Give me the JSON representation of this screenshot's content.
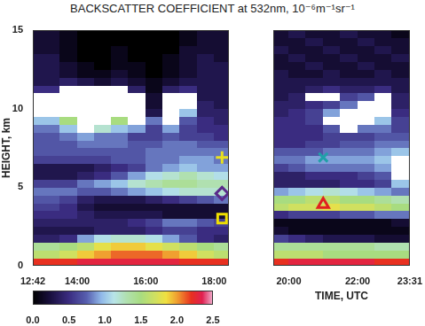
{
  "title": "BACKSCATTER COEFFICIENT at 532nm, 10⁻⁶m⁻¹sr⁻¹",
  "colorbar": {
    "range": [
      0,
      2.5
    ],
    "ticks": [
      {
        "value": 0,
        "label": "0.0"
      },
      0.5,
      {
        "value": 1,
        "label": "1.0"
      },
      1.5,
      {
        "value": 2,
        "label": "2.0"
      },
      2.5
    ]
  },
  "chart_data": [
    {
      "type": "heatmap",
      "y_label": "HEIGHT, km",
      "xlim": [
        12.7,
        18.43
      ],
      "xticks": [
        {
          "value": 12.7,
          "label": "12:42"
        },
        {
          "value": 14,
          "label": "14:00"
        },
        {
          "value": 16,
          "label": "16:00"
        },
        {
          "value": 18,
          "label": "18:00"
        }
      ],
      "ylim": [
        0,
        15
      ],
      "yticks": [
        0,
        5,
        10,
        15
      ],
      "x_edges": [
        12.7,
        13.5,
        14.0,
        14.5,
        15.0,
        15.5,
        16.0,
        16.5,
        17.0,
        17.5,
        18.0,
        18.43
      ],
      "y_edges": [
        0,
        0.5,
        1,
        1.5,
        2,
        2.5,
        3,
        3.5,
        4,
        4.5,
        5,
        5.5,
        6,
        6.5,
        7,
        7.5,
        8,
        8.5,
        9,
        9.5,
        10,
        10.5,
        11,
        11.5,
        12,
        12.5,
        13,
        13.5,
        14,
        14.5,
        15
      ],
      "cells": [
        [
          2.2,
          2.2,
          2.3,
          2.3,
          2.3,
          2.3,
          2.3,
          2.3,
          2.2,
          2.2,
          2.2
        ],
        [
          1.6,
          1.7,
          1.9,
          2.0,
          2.1,
          2.1,
          2.1,
          2.0,
          1.9,
          1.7,
          1.6
        ],
        [
          1.4,
          1.5,
          1.6,
          1.8,
          1.9,
          1.9,
          1.8,
          1.7,
          1.6,
          1.5,
          1.4
        ],
        [
          0.4,
          0.5,
          0.9,
          1.1,
          1.2,
          1.2,
          1.1,
          0.9,
          0.7,
          0.5,
          0.4
        ],
        [
          0.3,
          0.3,
          0.3,
          0.4,
          0.4,
          0.4,
          0.5,
          0.6,
          0.6,
          0.5,
          0.5
        ],
        [
          0.4,
          0.4,
          0.4,
          0.4,
          0.4,
          0.5,
          0.6,
          0.8,
          0.8,
          0.7,
          0.6
        ],
        [
          0.5,
          0.5,
          0.4,
          0.3,
          0.3,
          0.3,
          0.3,
          0.2,
          0.2,
          0.2,
          0.2
        ],
        [
          0.6,
          0.5,
          0.3,
          0.2,
          0.2,
          0.2,
          0.2,
          0.2,
          0.2,
          0.2,
          0.2
        ],
        [
          0.7,
          0.6,
          0.4,
          0.3,
          0.3,
          0.3,
          0.4,
          0.5,
          0.6,
          0.7,
          0.8
        ],
        [
          0.8,
          0.8,
          0.7,
          0.7,
          0.8,
          0.9,
          1.0,
          1.1,
          1.2,
          1.2,
          1.2
        ],
        [
          0.6,
          0.6,
          0.8,
          0.9,
          1.0,
          1.2,
          1.3,
          1.4,
          1.4,
          1.3,
          1.3
        ],
        [
          0.3,
          0.3,
          0.4,
          0.5,
          0.7,
          0.9,
          1.1,
          1.2,
          1.3,
          1.2,
          1.1
        ],
        [
          0.3,
          0.3,
          0.3,
          0.4,
          0.5,
          0.6,
          0.8,
          0.9,
          1.0,
          0.9,
          0.9
        ],
        [
          0.6,
          0.6,
          0.6,
          0.6,
          0.7,
          0.7,
          0.8,
          0.8,
          0.9,
          0.9,
          0.8
        ],
        [
          0.7,
          0.7,
          0.7,
          0.7,
          0.7,
          0.7,
          0.8,
          0.8,
          0.8,
          0.8,
          0.8
        ],
        [
          0.7,
          0.7,
          0.8,
          0.8,
          0.8,
          0.7,
          0.7,
          0.8,
          0.8,
          0.7,
          0.7
        ],
        [
          0.7,
          0.8,
          0.9,
          0.8,
          0.8,
          0.6,
          0.6,
          0.7,
          0.6,
          0.6,
          0.5
        ],
        [
          0.8,
          1.0,
          3.0,
          1.2,
          1.0,
          0.9,
          0.6,
          0.9,
          0.6,
          0.5,
          0.5
        ],
        [
          1.0,
          1.5,
          3.0,
          3.0,
          1.5,
          3.0,
          0.8,
          3.0,
          0.7,
          0.5,
          0.4
        ],
        [
          3.0,
          3.0,
          3.0,
          3.0,
          3.0,
          3.0,
          0.3,
          3.0,
          1.0,
          0.4,
          0.4
        ],
        [
          3.0,
          3.0,
          3.0,
          3.0,
          3.0,
          3.0,
          0.2,
          3.0,
          3.0,
          0.4,
          0.3
        ],
        [
          3.0,
          3.0,
          3.0,
          3.0,
          3.0,
          3.0,
          0.2,
          3.0,
          3.0,
          0.3,
          0.3
        ],
        [
          0.5,
          3.0,
          3.0,
          3.0,
          3.0,
          0.4,
          0.1,
          0.4,
          0.5,
          0.3,
          0.3
        ],
        [
          0.3,
          0.4,
          0.3,
          0.2,
          0.3,
          0.2,
          0.1,
          0.2,
          0.3,
          0.3,
          0.3
        ],
        [
          0.3,
          0.2,
          0.1,
          0.1,
          0.2,
          0.1,
          0.0,
          0.1,
          0.2,
          0.3,
          0.3
        ],
        [
          0.3,
          0.2,
          0.1,
          0.0,
          0.1,
          0.1,
          0.0,
          0.1,
          0.2,
          0.3,
          0.3
        ],
        [
          0.3,
          0.1,
          0.0,
          0.0,
          0.1,
          0.0,
          0.0,
          0.1,
          0.2,
          0.3,
          0.2
        ],
        [
          0.2,
          0.1,
          0.0,
          0.0,
          0.1,
          0.0,
          0.0,
          0.0,
          0.2,
          0.2,
          0.2
        ],
        [
          0.2,
          0.1,
          0.0,
          0.0,
          0.0,
          0.0,
          0.0,
          0.0,
          0.1,
          0.2,
          0.2
        ],
        [
          0.2,
          0.1,
          0.0,
          0.0,
          0.0,
          0.0,
          0.0,
          0.0,
          0.1,
          0.2,
          0.2
        ]
      ],
      "points": [
        {
          "x": 18.23,
          "y": 6.9,
          "color": "#e8e020",
          "marker": "plus"
        },
        {
          "x": 18.23,
          "y": 4.6,
          "color": "#5a2a8a",
          "marker": "diamond"
        },
        {
          "x": 18.23,
          "y": 3.0,
          "color": "#f0e000",
          "marker": "square"
        }
      ]
    },
    {
      "type": "heatmap",
      "x_label": "TIME, UTC",
      "tick_labels": "x",
      "xlim": [
        19.55,
        23.517
      ],
      "xticks": [
        {
          "value": 20,
          "label": "20:00"
        },
        {
          "value": 22,
          "label": "22:00"
        },
        {
          "value": 23.517,
          "label": "23:31"
        }
      ],
      "ylim": [
        0,
        15
      ],
      "x_edges": [
        19.55,
        20.0,
        20.5,
        21.0,
        21.5,
        22.0,
        22.5,
        23.0,
        23.517
      ],
      "y_edges": [
        0,
        0.5,
        1,
        1.5,
        2,
        2.5,
        3,
        3.5,
        4,
        4.5,
        5,
        5.5,
        6,
        6.5,
        7,
        7.5,
        8,
        8.5,
        9,
        9.5,
        10,
        10.5,
        11,
        11.5,
        12,
        12.5,
        13,
        13.5,
        14,
        14.5,
        15
      ],
      "cells": [
        [
          2.2,
          2.3,
          2.3,
          2.3,
          2.3,
          2.3,
          2.2,
          2.2
        ],
        [
          1.6,
          1.6,
          1.6,
          1.5,
          1.5,
          1.5,
          1.5,
          1.5
        ],
        [
          1.4,
          1.4,
          1.4,
          1.4,
          1.4,
          1.4,
          1.3,
          1.3
        ],
        [
          0.6,
          0.5,
          0.4,
          0.3,
          0.3,
          0.3,
          0.2,
          0.2
        ],
        [
          0.2,
          0.1,
          0.1,
          0.1,
          0.1,
          0.1,
          0.1,
          0.1
        ],
        [
          0.1,
          0.1,
          0.1,
          0.1,
          0.1,
          0.1,
          0.1,
          0.2
        ],
        [
          0.5,
          0.6,
          0.6,
          0.6,
          0.7,
          0.7,
          0.8,
          0.8
        ],
        [
          1.6,
          1.7,
          1.7,
          1.8,
          1.7,
          1.7,
          1.6,
          1.5
        ],
        [
          1.5,
          1.5,
          1.6,
          1.6,
          1.5,
          1.5,
          1.4,
          1.3
        ],
        [
          0.9,
          1.0,
          1.1,
          1.2,
          1.1,
          1.0,
          0.9,
          0.8
        ],
        [
          0.4,
          0.4,
          0.4,
          0.4,
          0.5,
          0.5,
          0.6,
          1.0
        ],
        [
          0.4,
          0.4,
          0.5,
          0.5,
          0.5,
          0.6,
          0.7,
          3.0
        ],
        [
          0.6,
          0.7,
          0.8,
          0.8,
          0.8,
          0.8,
          0.9,
          3.0
        ],
        [
          0.8,
          0.8,
          0.9,
          0.9,
          0.9,
          0.9,
          1.0,
          3.0
        ],
        [
          0.7,
          0.7,
          0.7,
          0.8,
          0.8,
          0.8,
          0.9,
          1.0
        ],
        [
          0.5,
          0.5,
          0.6,
          0.6,
          0.7,
          0.7,
          0.8,
          0.8
        ],
        [
          0.5,
          0.5,
          0.5,
          0.6,
          0.6,
          0.6,
          0.7,
          0.7
        ],
        [
          0.5,
          0.5,
          0.5,
          0.7,
          3.0,
          0.8,
          0.8,
          0.6
        ],
        [
          0.5,
          0.5,
          0.6,
          3.0,
          3.0,
          3.0,
          1.0,
          0.6
        ],
        [
          0.4,
          0.5,
          0.6,
          0.9,
          3.0,
          3.0,
          3.0,
          0.5
        ],
        [
          0.4,
          0.4,
          0.5,
          0.6,
          0.8,
          3.0,
          3.0,
          0.4
        ],
        [
          0.3,
          0.4,
          3.0,
          3.0,
          0.6,
          0.7,
          3.0,
          0.4
        ],
        [
          0.3,
          0.3,
          0.4,
          0.5,
          0.4,
          0.4,
          0.5,
          0.3
        ],
        [
          0.3,
          0.3,
          0.3,
          0.3,
          0.3,
          0.3,
          0.3,
          0.3
        ],
        [
          0.3,
          0.2,
          0.2,
          0.3,
          0.2,
          0.2,
          0.3,
          0.2
        ],
        [
          0.2,
          0.2,
          0.3,
          0.2,
          0.2,
          0.3,
          0.2,
          0.2
        ],
        [
          0.2,
          0.3,
          0.2,
          0.2,
          0.3,
          0.2,
          0.2,
          0.3
        ],
        [
          0.3,
          0.2,
          0.2,
          0.3,
          0.2,
          0.2,
          0.3,
          0.2
        ],
        [
          0.2,
          0.2,
          0.3,
          0.2,
          0.2,
          0.3,
          0.2,
          0.2
        ],
        [
          0.2,
          0.3,
          0.2,
          0.2,
          0.3,
          0.2,
          0.2,
          0.1
        ]
      ],
      "points": [
        {
          "x": 21.0,
          "y": 6.9,
          "color": "#20a0a8",
          "marker": "cross"
        },
        {
          "x": 21.0,
          "y": 3.9,
          "color": "#e02020",
          "marker": "triangle"
        }
      ]
    }
  ]
}
